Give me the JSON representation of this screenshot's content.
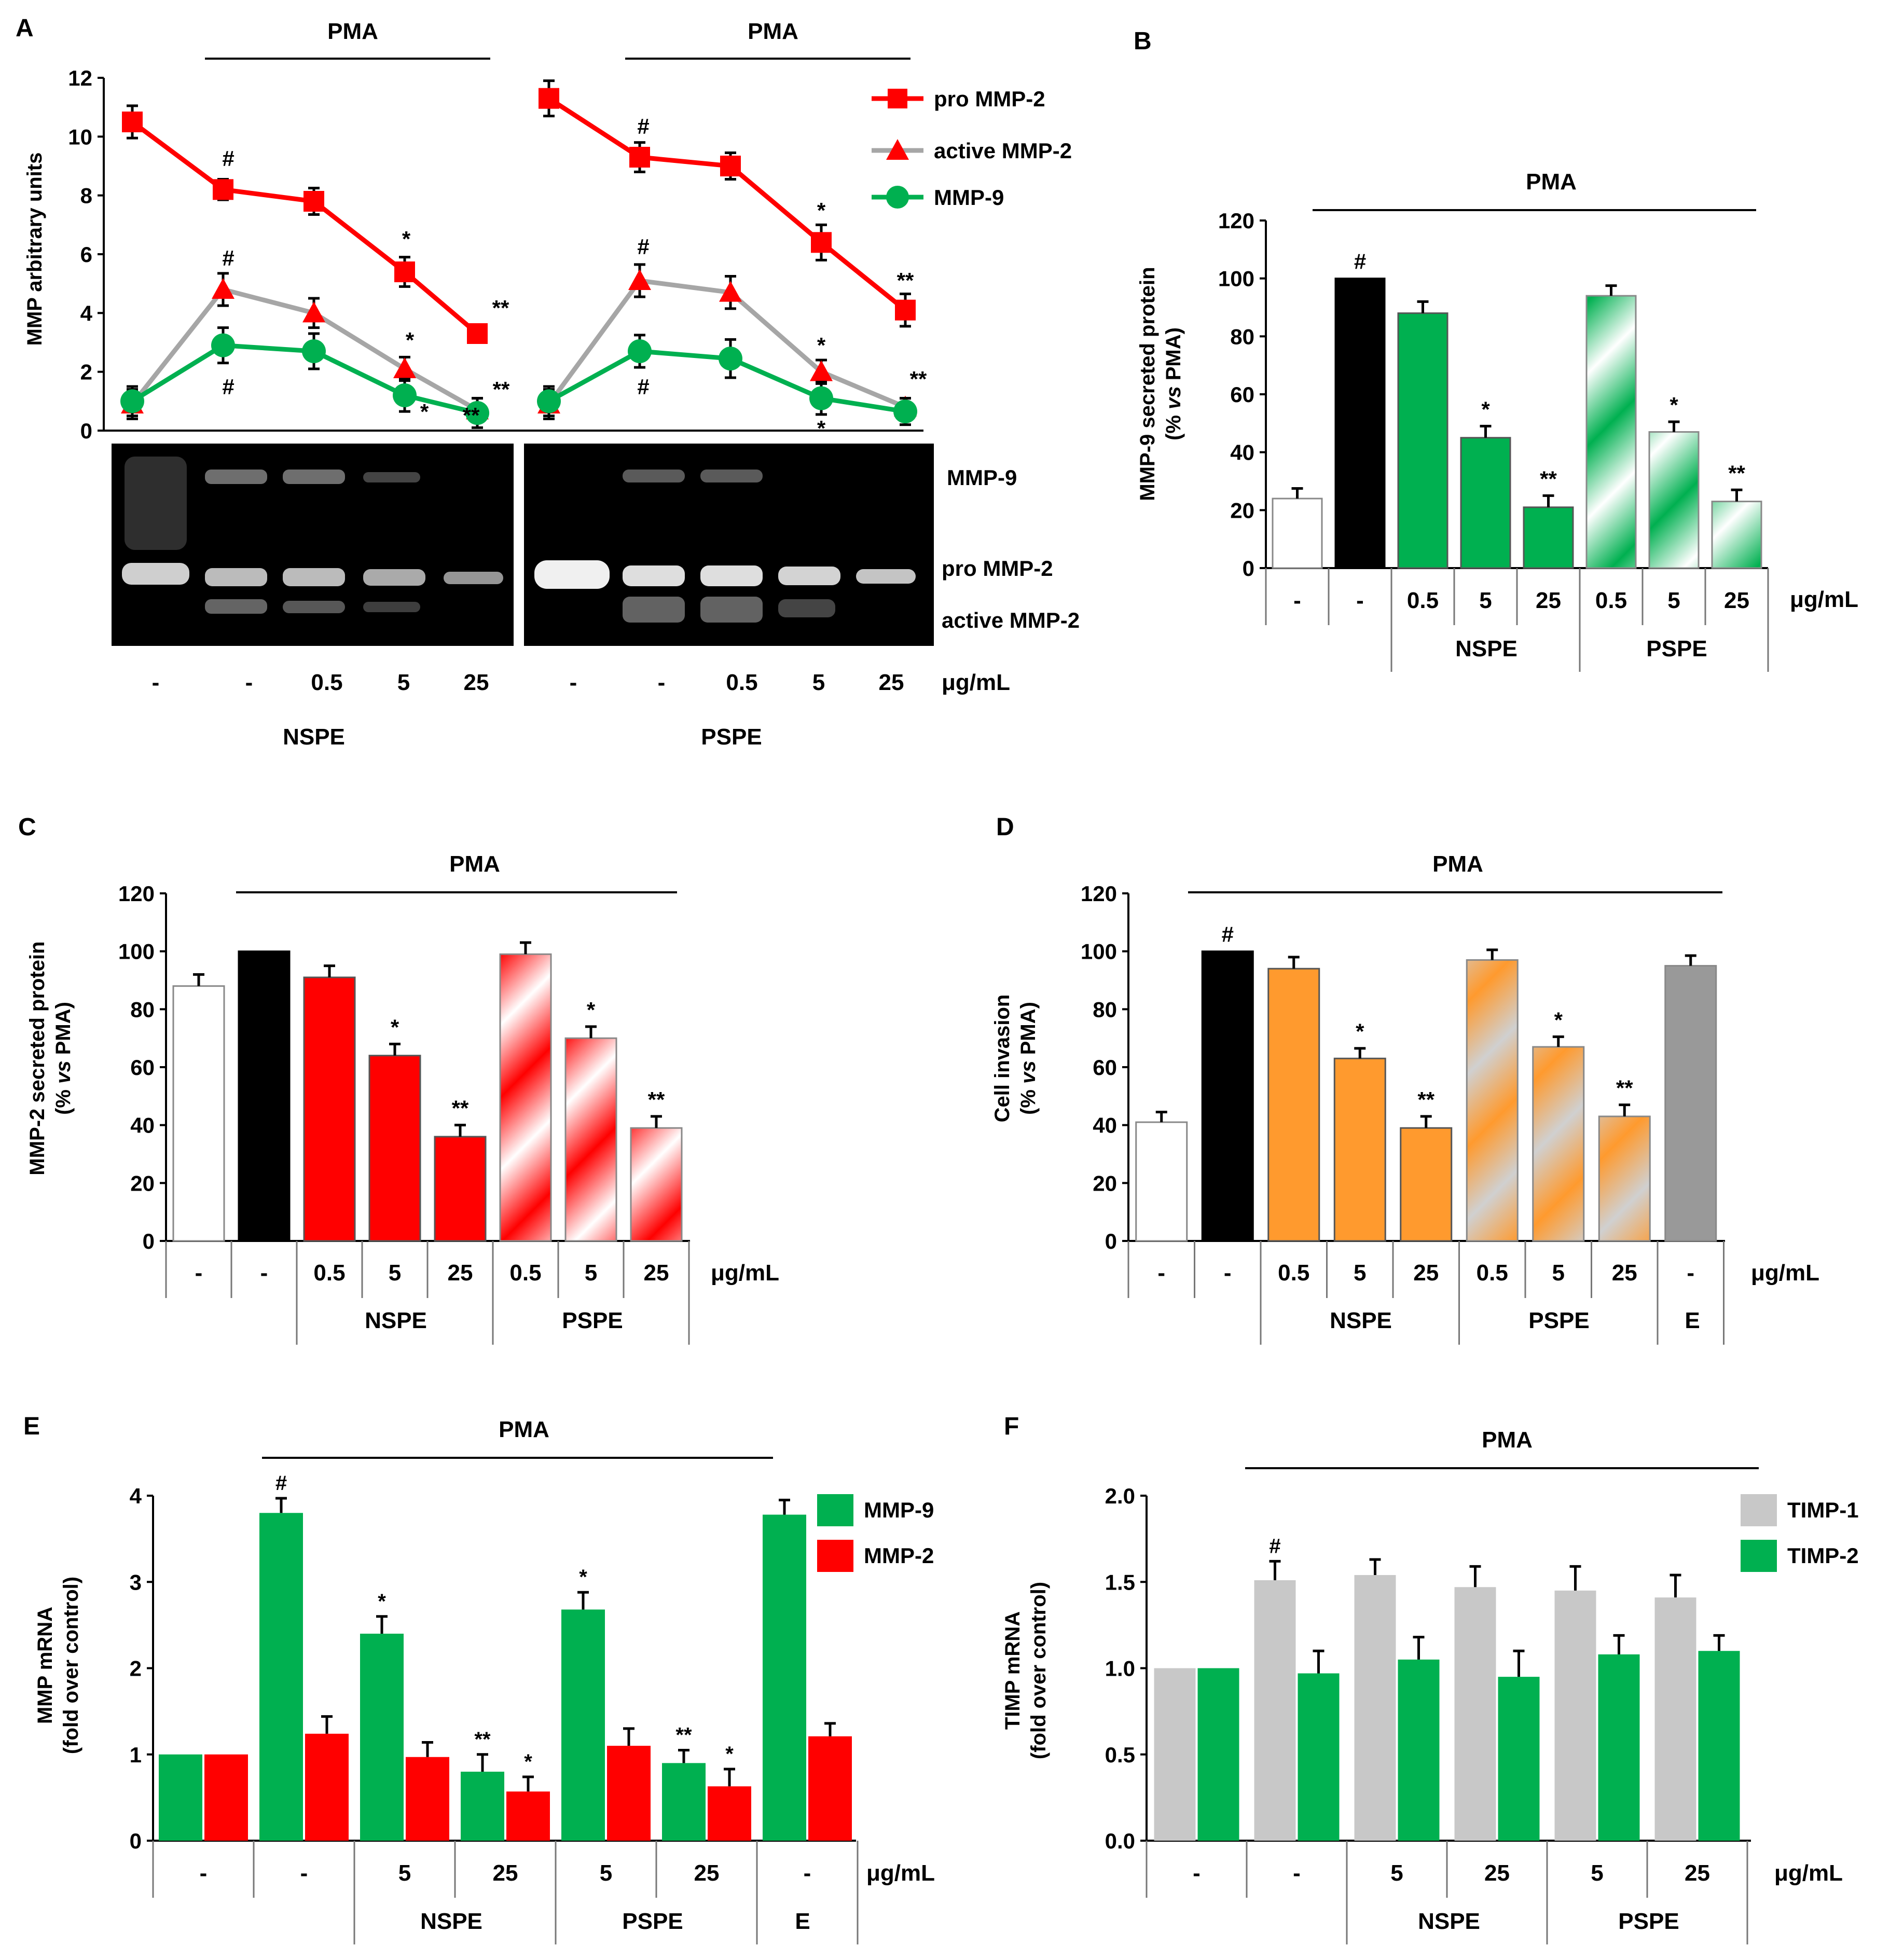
{
  "colors": {
    "red": "#ff0000",
    "green": "#00b050",
    "orange": "#ff9a2e",
    "gray": "#999999",
    "light_gray": "#c8c8c8",
    "black": "#000000",
    "line_gray": "#a6a6a6"
  },
  "common": {
    "pma": "PMA",
    "unit": "μg/mL",
    "nspe": "NSPE",
    "pspe": "PSPE",
    "e": "E"
  },
  "chart_data": [
    {
      "panel": "A",
      "type": "line",
      "ylabel": "MMP arbitrary units",
      "ylim": [
        0,
        12
      ],
      "yticks": [
        "0",
        "2",
        "4",
        "6",
        "8",
        "10",
        "12"
      ],
      "categories": [
        "-",
        "-",
        "0.5",
        "5",
        "25"
      ],
      "groups": [
        "NSPE",
        "PSPE"
      ],
      "legend": [
        "pro MMP-2",
        "active MMP-2",
        "MMP-9"
      ],
      "gel_labels": [
        "MMP-9",
        "pro MMP-2",
        "active MMP-2"
      ],
      "series": [
        {
          "name": "pro MMP-2",
          "nspe": [
            10.5,
            8.2,
            7.8,
            5.4,
            3.3
          ],
          "nspe_err": [
            0.55,
            0.35,
            0.45,
            0.5,
            0.3
          ],
          "pspe": [
            11.3,
            9.3,
            9.0,
            6.4,
            4.1
          ],
          "pspe_err": [
            0.6,
            0.5,
            0.45,
            0.6,
            0.55
          ]
        },
        {
          "name": "active MMP-2",
          "nspe": [
            0.9,
            4.8,
            4.0,
            2.1,
            0.7
          ],
          "nspe_err": [
            0.5,
            0.55,
            0.5,
            0.4,
            0.4
          ],
          "pspe": [
            0.9,
            5.1,
            4.7,
            2.0,
            0.8
          ],
          "pspe_err": [
            0.5,
            0.55,
            0.55,
            0.4,
            0.3
          ]
        },
        {
          "name": "MMP-9",
          "nspe": [
            1.0,
            2.9,
            2.7,
            1.2,
            0.6
          ],
          "nspe_err": [
            0.5,
            0.6,
            0.6,
            0.55,
            0.5
          ],
          "pspe": [
            1.0,
            2.7,
            2.45,
            1.1,
            0.65
          ],
          "pspe_err": [
            0.5,
            0.55,
            0.65,
            0.55,
            0.45
          ]
        }
      ],
      "annotations": [
        "#",
        "#",
        "*",
        "**",
        "#",
        "*",
        "*",
        "**",
        "**",
        "#",
        "#",
        "*",
        "**",
        "#",
        "*",
        "*",
        "**"
      ]
    },
    {
      "panel": "B",
      "type": "bar",
      "ylabel_1": "MMP-9 secreted protein",
      "ylabel_2a": "(% ",
      "ylabel_2i": "vs",
      "ylabel_2b": " PMA)",
      "ylim": [
        0,
        120
      ],
      "yticks": [
        "0",
        "20",
        "40",
        "60",
        "80",
        "100",
        "120"
      ],
      "categories": [
        "-",
        "-",
        "0.5",
        "5",
        "25",
        "0.5",
        "5",
        "25"
      ],
      "values": [
        24,
        100,
        88,
        45,
        21,
        94,
        47,
        23
      ],
      "errors": [
        3.5,
        0,
        4,
        4,
        4,
        3.5,
        3.5,
        4
      ],
      "labels": [
        "",
        "#",
        "",
        "*",
        "**",
        "",
        "*",
        "**"
      ]
    },
    {
      "panel": "C",
      "type": "bar",
      "ylabel_1": "MMP-2 secreted protein",
      "ylabel_2a": "(% ",
      "ylabel_2i": "vs",
      "ylabel_2b": " PMA)",
      "ylim": [
        0,
        120
      ],
      "yticks": [
        "0",
        "20",
        "40",
        "60",
        "80",
        "100",
        "120"
      ],
      "categories": [
        "-",
        "-",
        "0.5",
        "5",
        "25",
        "0.5",
        "5",
        "25"
      ],
      "values": [
        88,
        100,
        91,
        64,
        36,
        99,
        70,
        39
      ],
      "errors": [
        4,
        0,
        4,
        4,
        4,
        4,
        4,
        4
      ],
      "labels": [
        "",
        "",
        "",
        "*",
        "**",
        "",
        "*",
        "**"
      ]
    },
    {
      "panel": "D",
      "type": "bar",
      "ylabel_1": "Cell  invasion",
      "ylabel_2a": "(% ",
      "ylabel_2i": "vs",
      "ylabel_2b": " PMA)",
      "ylim": [
        0,
        120
      ],
      "yticks": [
        "0",
        "20",
        "40",
        "60",
        "80",
        "100",
        "120"
      ],
      "categories": [
        "-",
        "-",
        "0.5",
        "5",
        "25",
        "0.5",
        "5",
        "25",
        "-"
      ],
      "values": [
        41,
        100,
        94,
        63,
        39,
        97,
        67,
        43,
        95
      ],
      "errors": [
        3.5,
        0,
        4,
        3.5,
        4,
        3.5,
        3.5,
        4,
        3.5
      ],
      "labels": [
        "",
        "#",
        "",
        "*",
        "**",
        "",
        "*",
        "**",
        ""
      ]
    },
    {
      "panel": "E",
      "type": "bar",
      "ylabel_1": "MMP mRNA",
      "ylabel_2": "(fold over control)",
      "ylim": [
        0,
        4
      ],
      "yticks": [
        "0",
        "1",
        "2",
        "3",
        "4"
      ],
      "categories": [
        "-",
        "-",
        "5",
        "25",
        "5",
        "25",
        "-"
      ],
      "series": [
        {
          "name": "MMP-9",
          "values": [
            1.0,
            3.8,
            2.4,
            0.8,
            2.68,
            0.9,
            3.78
          ],
          "errors": [
            0,
            0.17,
            0.2,
            0.2,
            0.2,
            0.15,
            0.17
          ],
          "labels": [
            "",
            "#",
            "*",
            "**",
            "*",
            "**",
            ""
          ]
        },
        {
          "name": "MMP-2",
          "values": [
            1.0,
            1.24,
            0.97,
            0.57,
            1.1,
            0.63,
            1.21
          ],
          "errors": [
            0,
            0.2,
            0.17,
            0.17,
            0.2,
            0.2,
            0.15
          ],
          "labels": [
            "",
            "",
            "",
            "*",
            "",
            "*",
            ""
          ]
        }
      ]
    },
    {
      "panel": "F",
      "type": "bar",
      "ylabel_1": "TIMP mRNA",
      "ylabel_2": "(fold over control)",
      "ylim": [
        0,
        2.0
      ],
      "yticks": [
        "0.0",
        "0.5",
        "1.0",
        "1.5",
        "2.0"
      ],
      "categories": [
        "-",
        "-",
        "5",
        "25",
        "5",
        "25"
      ],
      "series": [
        {
          "name": "TIMP-1",
          "values": [
            1.0,
            1.51,
            1.54,
            1.47,
            1.45,
            1.41
          ],
          "errors": [
            0,
            0.11,
            0.09,
            0.12,
            0.14,
            0.13
          ],
          "labels": [
            "",
            "#",
            "",
            "",
            "",
            ""
          ]
        },
        {
          "name": "TIMP-2",
          "values": [
            1.0,
            0.97,
            1.05,
            0.95,
            1.08,
            1.1
          ],
          "errors": [
            0,
            0.13,
            0.13,
            0.15,
            0.11,
            0.09
          ],
          "labels": [
            "",
            "",
            "",
            "",
            "",
            ""
          ]
        }
      ]
    }
  ]
}
